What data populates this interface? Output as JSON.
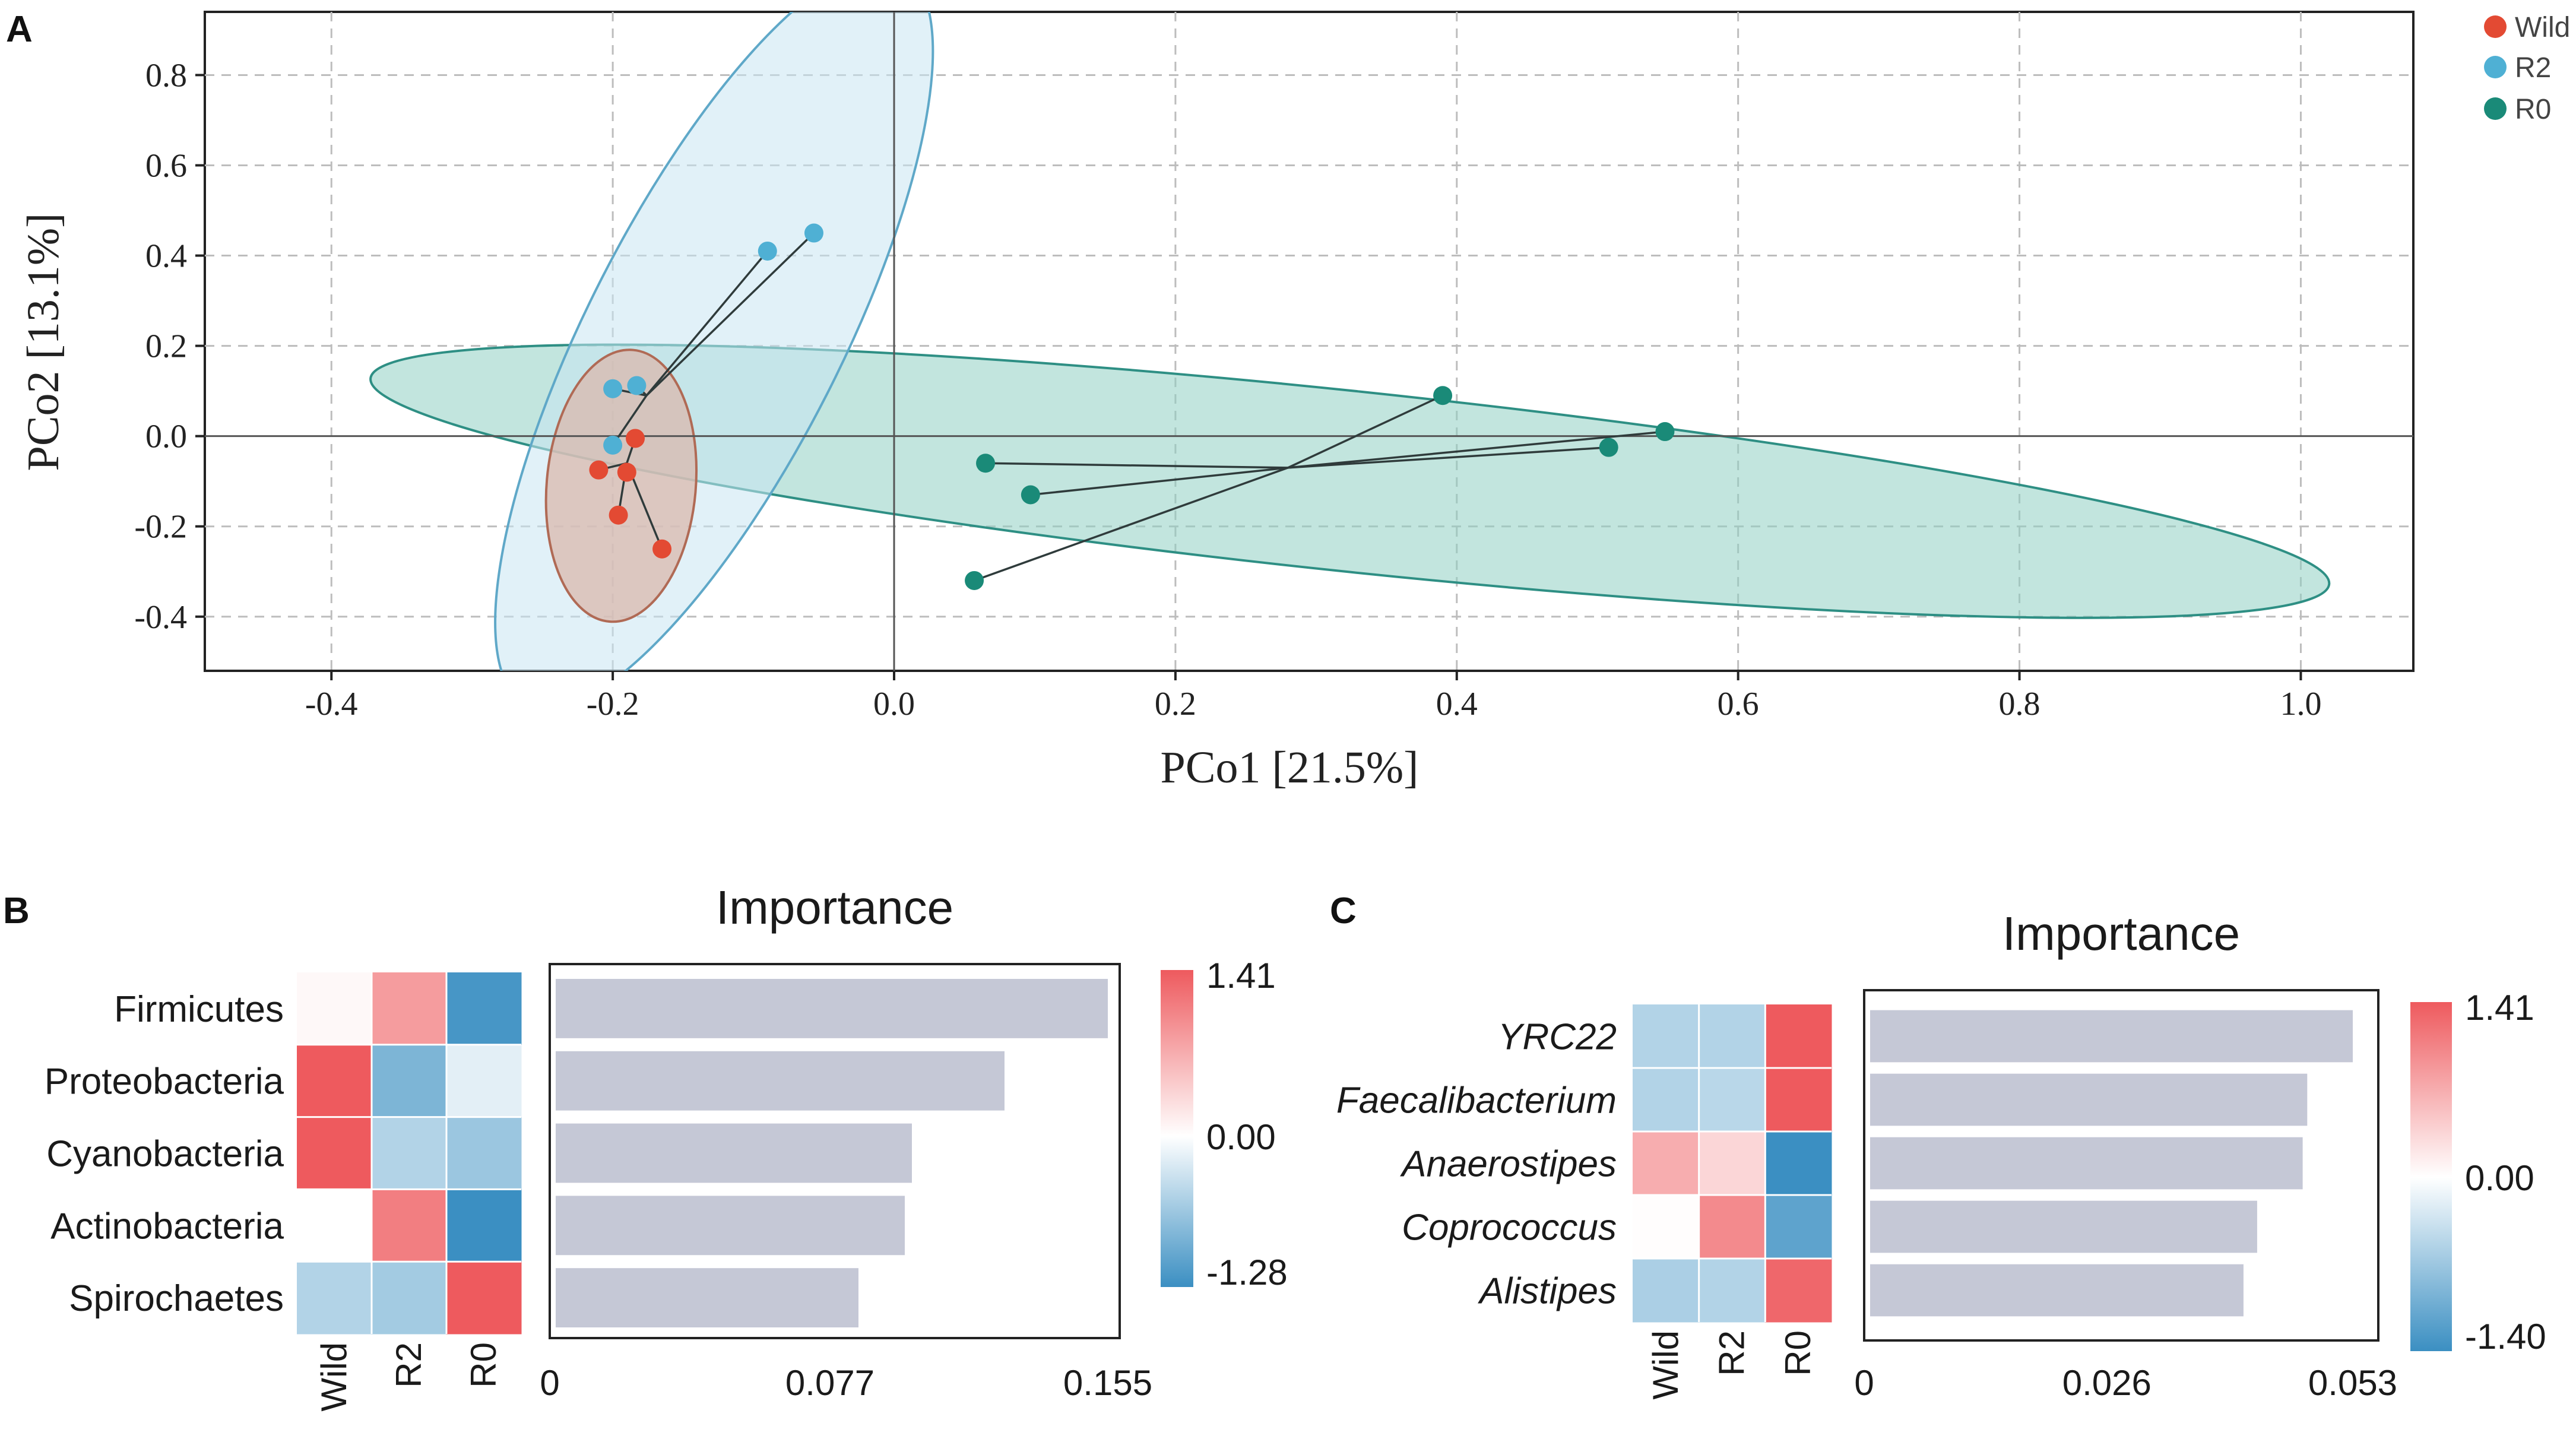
{
  "colors": {
    "wild": "#e34a33",
    "r2": "#4fb0d4",
    "r0": "#1a8a78",
    "wild_fill": "#d9b8ae",
    "r2_fill": "#c9e6f2",
    "r0_fill": "#8fd0c2",
    "bar": "#c5c8d6",
    "heat_high": "#ee5a5e",
    "heat_mid": "#ffffff",
    "heat_low": "#3b8fc2"
  },
  "chart_data": [
    {
      "panel": "A",
      "type": "scatter",
      "xlabel": "PCo1 [21.5%]",
      "ylabel": "PCo2 [13.1%]",
      "xlim": [
        -0.49,
        1.08
      ],
      "ylim": [
        -0.52,
        0.94
      ],
      "xticks": [
        -0.4,
        -0.2,
        0.0,
        0.2,
        0.4,
        0.6,
        0.8,
        1.0
      ],
      "xtick_labels": [
        "-0.4",
        "-0.2",
        "0.0",
        "0.2",
        "0.4",
        "0.6",
        "0.8",
        "1.0"
      ],
      "yticks": [
        -0.4,
        -0.2,
        0.0,
        0.2,
        0.4,
        0.6,
        0.8
      ],
      "ytick_labels": [
        "-0.4",
        "-0.2",
        "0.0",
        "0.2",
        "0.4",
        "0.6",
        "0.8"
      ],
      "legend": [
        "Wild",
        "R2",
        "R0"
      ],
      "legend_position": "right-top",
      "series": [
        {
          "name": "Wild",
          "centroid": [
            -0.19,
            -0.06
          ],
          "points": [
            [
              -0.184,
              -0.005
            ],
            [
              -0.21,
              -0.075
            ],
            [
              -0.19,
              -0.08
            ],
            [
              -0.196,
              -0.175
            ],
            [
              -0.165,
              -0.25
            ]
          ],
          "ellipse": {
            "center": [
              -0.194,
              -0.11
            ],
            "radii": [
              0.053,
              0.302
            ],
            "angle_deg": 5
          }
        },
        {
          "name": "R2",
          "centroid": [
            -0.176,
            0.09
          ],
          "points": [
            [
              -0.057,
              0.45
            ],
            [
              -0.09,
              0.41
            ],
            [
              -0.2,
              0.105
            ],
            [
              -0.183,
              0.112
            ],
            [
              -0.2,
              -0.02
            ]
          ],
          "ellipse": {
            "center": [
              -0.128,
              0.22
            ],
            "radii": [
              0.09,
              0.915
            ],
            "angle_deg": 27
          }
        },
        {
          "name": "R0",
          "centroid": [
            0.28,
            -0.07
          ],
          "points": [
            [
              0.39,
              0.09
            ],
            [
              0.548,
              0.01
            ],
            [
              0.508,
              -0.025
            ],
            [
              0.065,
              -0.06
            ],
            [
              0.097,
              -0.13
            ],
            [
              0.057,
              -0.32
            ]
          ],
          "ellipse": {
            "center": [
              0.324,
              -0.1
            ],
            "radii": [
              0.7,
              0.2
            ],
            "angle_deg": 6
          }
        }
      ]
    },
    {
      "panel": "B",
      "type": "bar",
      "title": "Importance",
      "orientation": "horizontal",
      "categories": [
        "Firmicutes",
        "Proteobacteria",
        "Cyanobacteria",
        "Actinobacteria",
        "Spirochaetes"
      ],
      "italic": false,
      "values": [
        0.155,
        0.126,
        0.1,
        0.098,
        0.085
      ],
      "xlim": [
        0,
        0.155
      ],
      "xtick_labels": [
        "0",
        "0.077",
        "0.155"
      ],
      "heatmap_columns": [
        "Wild",
        "R2",
        "R0"
      ],
      "heatmap": [
        [
          0.06,
          0.85,
          -1.2
        ],
        [
          1.41,
          -0.85,
          -0.18
        ],
        [
          1.41,
          -0.5,
          -0.65
        ],
        [
          0.0,
          1.1,
          -1.28
        ],
        [
          -0.5,
          -0.6,
          1.41
        ]
      ],
      "scale_labels": [
        "1.41",
        "0.00",
        "-1.28"
      ],
      "scale_range": [
        -1.28,
        1.41
      ]
    },
    {
      "panel": "C",
      "type": "bar",
      "title": "Importance",
      "orientation": "horizontal",
      "categories": [
        "YRC22",
        "Faecalibacterium",
        "Anaerostipes",
        "Coprococcus",
        "Alistipes"
      ],
      "italic": true,
      "values": [
        0.053,
        0.048,
        0.0475,
        0.0425,
        0.041
      ],
      "xlim": [
        0,
        0.0545
      ],
      "xtick_labels": [
        "0",
        "0.026",
        "0.053"
      ],
      "heatmap_columns": [
        "Wild",
        "R2",
        "R0"
      ],
      "heatmap": [
        [
          -0.55,
          -0.55,
          1.41
        ],
        [
          -0.55,
          -0.5,
          1.41
        ],
        [
          0.7,
          0.35,
          -1.4
        ],
        [
          0.02,
          1.0,
          -1.15
        ],
        [
          -0.6,
          -0.55,
          1.3
        ]
      ],
      "scale_labels": [
        "1.41",
        "0.00",
        "-1.40"
      ],
      "scale_range": [
        -1.4,
        1.41
      ]
    }
  ],
  "panel_labels": [
    "A",
    "B",
    "C"
  ]
}
